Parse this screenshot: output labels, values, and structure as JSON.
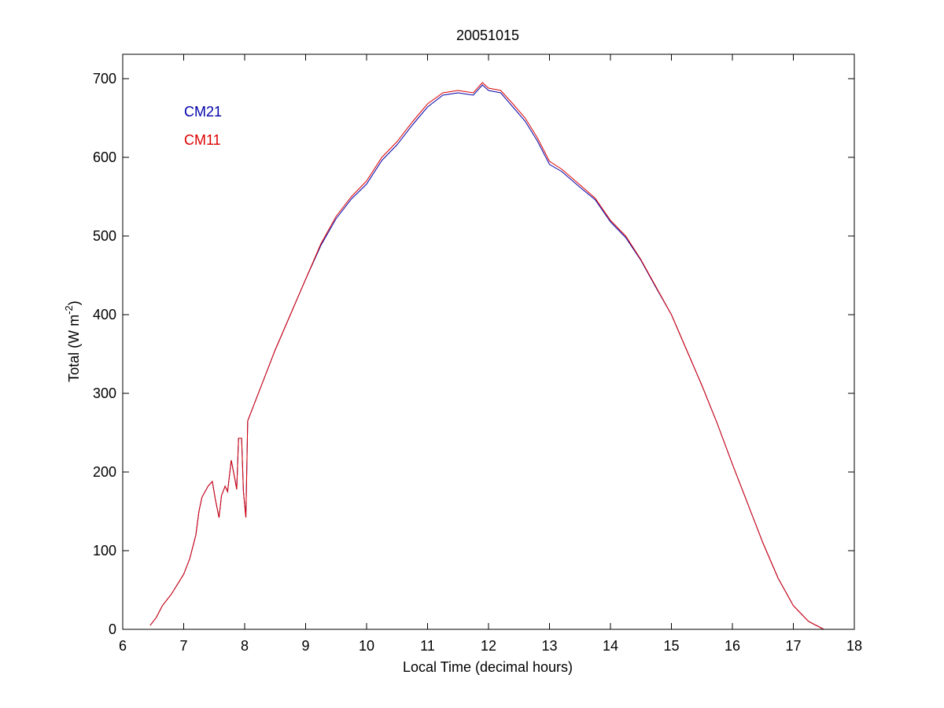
{
  "chart_data": {
    "type": "line",
    "title": "20051015",
    "xlabel": "Local Time (decimal hours)",
    "ylabel": [
      "Total (W m",
      "-2",
      ")"
    ],
    "x": [
      6.45,
      6.55,
      6.65,
      6.8,
      7.0,
      7.1,
      7.2,
      7.25,
      7.3,
      7.4,
      7.47,
      7.52,
      7.58,
      7.62,
      7.68,
      7.72,
      7.78,
      7.83,
      7.87,
      7.9,
      7.95,
      7.98,
      8.02,
      8.05,
      8.15,
      8.3,
      8.5,
      8.75,
      9.0,
      9.25,
      9.5,
      9.75,
      10.0,
      10.25,
      10.5,
      10.75,
      11.0,
      11.25,
      11.5,
      11.75,
      11.9,
      12.0,
      12.2,
      12.4,
      12.6,
      12.8,
      13.0,
      13.2,
      13.5,
      13.75,
      14.0,
      14.25,
      14.5,
      14.75,
      15.0,
      15.25,
      15.5,
      15.75,
      16.0,
      16.25,
      16.5,
      16.75,
      17.0,
      17.25,
      17.5
    ],
    "series": [
      {
        "name": "CM21",
        "color": "#0000aa",
        "values": [
          5,
          15,
          30,
          45,
          70,
          90,
          120,
          150,
          168,
          182,
          188,
          165,
          142,
          170,
          182,
          175,
          215,
          195,
          178,
          243,
          243,
          175,
          142,
          265,
          285,
          315,
          355,
          400,
          445,
          488,
          522,
          547,
          566,
          596,
          616,
          641,
          664,
          679,
          682,
          679,
          692,
          685,
          682,
          664,
          646,
          621,
          591,
          582,
          562,
          546,
          518,
          498,
          469,
          434,
          400,
          355,
          310,
          262,
          210,
          160,
          110,
          65,
          30,
          10,
          0
        ]
      },
      {
        "name": "CM11",
        "color": "#dd0000",
        "values": [
          5,
          15,
          30,
          45,
          70,
          90,
          120,
          150,
          168,
          182,
          188,
          165,
          142,
          170,
          182,
          175,
          215,
          195,
          178,
          243,
          243,
          175,
          142,
          265,
          285,
          315,
          355,
          400,
          445,
          490,
          525,
          550,
          570,
          600,
          620,
          645,
          668,
          682,
          685,
          682,
          695,
          688,
          685,
          668,
          650,
          625,
          595,
          585,
          565,
          548,
          520,
          500,
          470,
          435,
          400,
          355,
          310,
          262,
          210,
          160,
          110,
          65,
          30,
          10,
          0
        ]
      }
    ],
    "xlim": [
      6,
      18
    ],
    "xticks": [
      6,
      7,
      8,
      9,
      10,
      11,
      12,
      13,
      14,
      15,
      16,
      17,
      18
    ],
    "ylim": [
      0,
      731
    ],
    "yticks": [
      0,
      100,
      200,
      300,
      400,
      500,
      600,
      700
    ],
    "legend_position": "upper left",
    "grid": false
  }
}
